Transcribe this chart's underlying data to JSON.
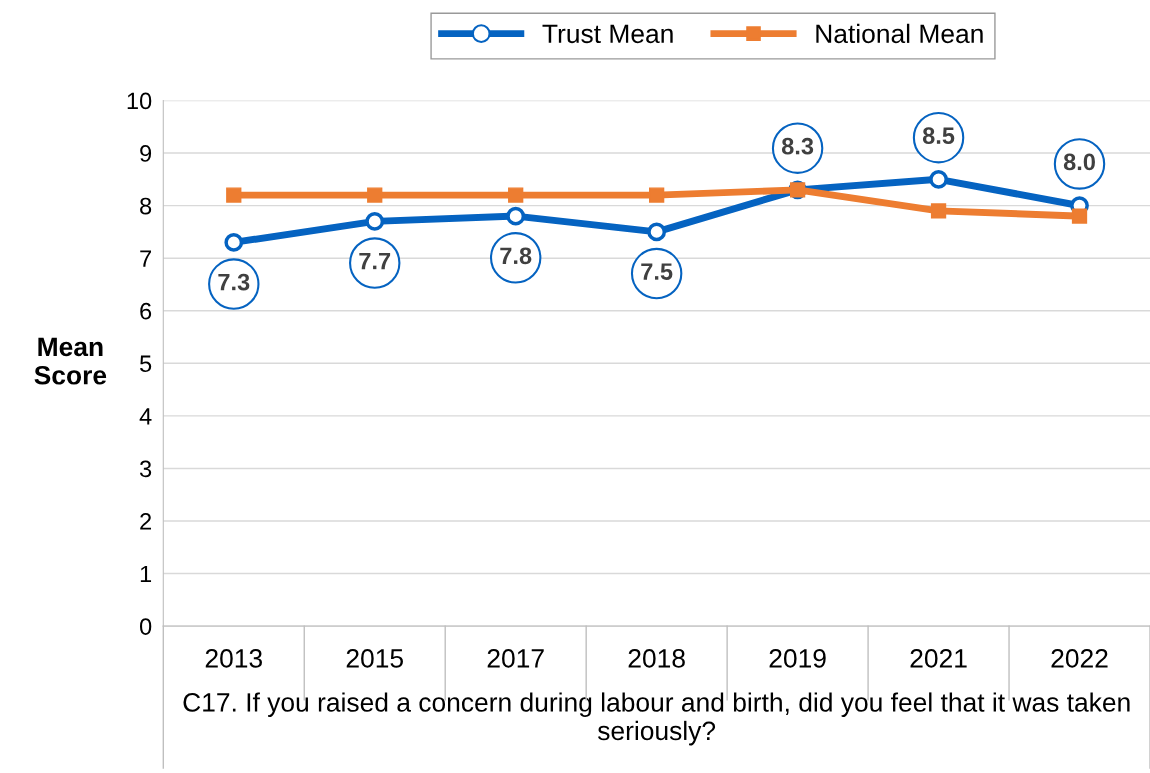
{
  "chart_data": {
    "type": "line",
    "xlabel": "C17. If you raised a concern during labour and birth, did you feel that it was taken seriously?",
    "ylabel": "Mean\nScore",
    "categories": [
      "2013",
      "2015",
      "2017",
      "2018",
      "2019",
      "2021",
      "2022"
    ],
    "series": [
      {
        "name": "Trust Mean",
        "color": "#0563c1",
        "marker": "circle",
        "values": [
          7.3,
          7.7,
          7.8,
          7.5,
          8.3,
          8.5,
          8.0
        ],
        "value_labels": [
          "7.3",
          "7.7",
          "7.8",
          "7.5",
          "8.3",
          "8.5",
          "8.0"
        ]
      },
      {
        "name": "National Mean",
        "color": "#ed7d31",
        "marker": "square",
        "values": [
          8.2,
          8.2,
          8.2,
          8.2,
          8.3,
          7.9,
          7.8
        ]
      }
    ],
    "ylim": [
      0,
      10
    ],
    "yticks": [
      0,
      1,
      2,
      3,
      4,
      5,
      6,
      7,
      8,
      9,
      10
    ],
    "grid": "y",
    "legend": "top",
    "line_style": "solid"
  }
}
